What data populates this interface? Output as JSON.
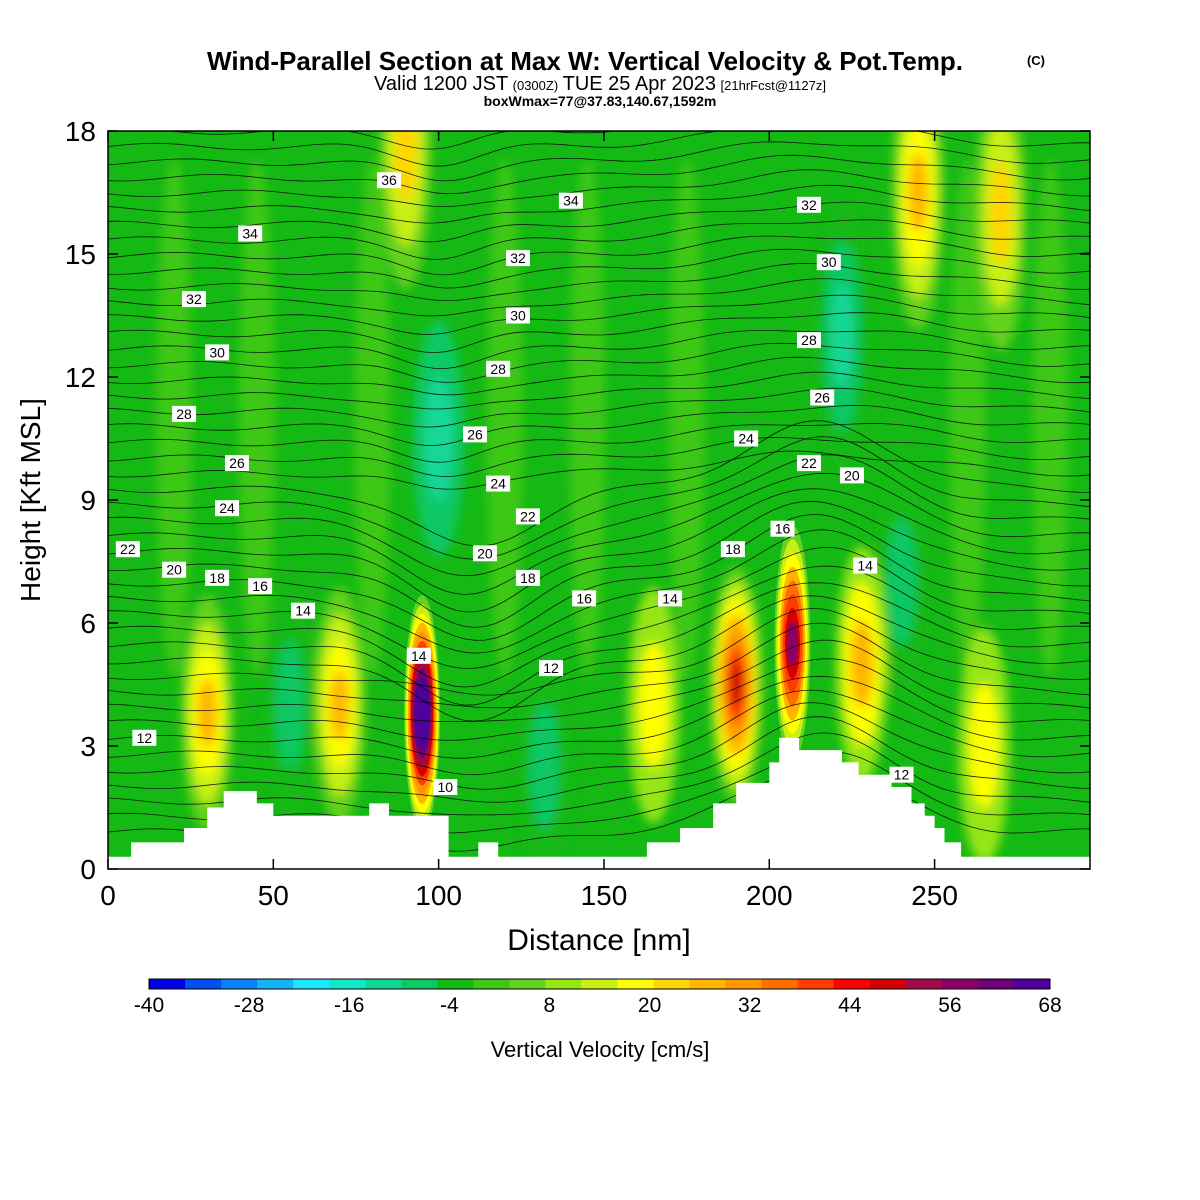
{
  "header": {
    "title": "Wind-Parallel Section at Max W: Vertical Velocity & Pot.Temp.",
    "title_mark": "(C)",
    "subtitle_a": "Valid 1200 JST",
    "subtitle_b": "(0300Z)",
    "subtitle_c": "TUE 25 Apr 2023",
    "subtitle_d": "[21hrFcst@1127z]",
    "subtitle_line3": "boxWmax=77@37.83,140.67,1592m"
  },
  "chart_data": {
    "type": "heatmap",
    "xlabel": "Distance [nm]",
    "ylabel": "Height [Kft MSL]",
    "xlim": [
      0,
      297
    ],
    "ylim": [
      0,
      18
    ],
    "x_ticks": [
      0,
      50,
      100,
      150,
      200,
      250
    ],
    "y_ticks": [
      0,
      3,
      6,
      9,
      12,
      15,
      18
    ],
    "colorbar": {
      "label": "Vertical Velocity [cm/s]",
      "min": -40,
      "max": 68,
      "step": 4,
      "tick_labels": [
        "-40",
        "-28",
        "-16",
        "-4",
        "8",
        "20",
        "32",
        "44",
        "56",
        "68"
      ],
      "colors": [
        "#0000e6",
        "#0050f0",
        "#0a82f5",
        "#18b4f8",
        "#1ee6ff",
        "#14e6c8",
        "#14d796",
        "#0fc864",
        "#14b914",
        "#3cc814",
        "#64d21e",
        "#96e614",
        "#c8f014",
        "#ffff00",
        "#ffd700",
        "#ffb400",
        "#ff9600",
        "#ff6e00",
        "#ff3c00",
        "#ff0000",
        "#d20000",
        "#a00a46",
        "#8c0064",
        "#6e0078",
        "#50009b"
      ]
    },
    "updrafts": [
      {
        "x": 95,
        "z": 3.8,
        "peak": 72
      },
      {
        "x": 207,
        "z": 5.5,
        "peak": 48
      },
      {
        "x": 190,
        "z": 4.5,
        "peak": 40
      },
      {
        "x": 70,
        "z": 4.0,
        "peak": 22
      },
      {
        "x": 30,
        "z": 3.8,
        "peak": 22
      },
      {
        "x": 165,
        "z": 4.0,
        "peak": 12
      },
      {
        "x": 228,
        "z": 5.0,
        "peak": 20
      },
      {
        "x": 265,
        "z": 3.0,
        "peak": 12
      },
      {
        "x": 90,
        "z": 17.5,
        "peak": 18
      },
      {
        "x": 245,
        "z": 16.5,
        "peak": 22
      },
      {
        "x": 270,
        "z": 16.0,
        "peak": 16
      }
    ],
    "downdrafts": [
      {
        "x": 55,
        "z": 4.0,
        "peak": -12
      },
      {
        "x": 100,
        "z": 10.5,
        "peak": -14
      },
      {
        "x": 132,
        "z": 2.5,
        "peak": -10
      },
      {
        "x": 222,
        "z": 13.0,
        "peak": -16
      },
      {
        "x": 240,
        "z": 7.0,
        "peak": -12
      }
    ],
    "terrain": [
      [
        0,
        0.3
      ],
      [
        7,
        0.3
      ],
      [
        7,
        0.65
      ],
      [
        23,
        0.65
      ],
      [
        23,
        1.0
      ],
      [
        30,
        1.0
      ],
      [
        30,
        1.5
      ],
      [
        35,
        1.5
      ],
      [
        35,
        1.9
      ],
      [
        45,
        1.9
      ],
      [
        45,
        1.6
      ],
      [
        50,
        1.6
      ],
      [
        50,
        1.3
      ],
      [
        79,
        1.3
      ],
      [
        79,
        1.6
      ],
      [
        85,
        1.6
      ],
      [
        85,
        1.3
      ],
      [
        103,
        1.3
      ],
      [
        103,
        0.3
      ],
      [
        112,
        0.3
      ],
      [
        112,
        0.65
      ],
      [
        118,
        0.65
      ],
      [
        118,
        0.3
      ],
      [
        163,
        0.3
      ],
      [
        163,
        0.65
      ],
      [
        173,
        0.65
      ],
      [
        173,
        1.0
      ],
      [
        183,
        1.0
      ],
      [
        183,
        1.6
      ],
      [
        190,
        1.6
      ],
      [
        190,
        2.1
      ],
      [
        200,
        2.1
      ],
      [
        200,
        2.6
      ],
      [
        203,
        2.6
      ],
      [
        203,
        3.2
      ],
      [
        209,
        3.2
      ],
      [
        209,
        2.9
      ],
      [
        222,
        2.9
      ],
      [
        222,
        2.6
      ],
      [
        227,
        2.6
      ],
      [
        227,
        2.3
      ],
      [
        237,
        2.3
      ],
      [
        237,
        2.0
      ],
      [
        243,
        2.0
      ],
      [
        243,
        1.6
      ],
      [
        247,
        1.6
      ],
      [
        247,
        1.3
      ],
      [
        250,
        1.3
      ],
      [
        250,
        1.0
      ],
      [
        253,
        1.0
      ],
      [
        253,
        0.65
      ],
      [
        258,
        0.65
      ],
      [
        258,
        0.3
      ],
      [
        297,
        0.3
      ]
    ],
    "theta_labels": [
      {
        "text": "36",
        "x": 85,
        "z": 16.8
      },
      {
        "text": "34",
        "x": 140,
        "z": 16.3
      },
      {
        "text": "34",
        "x": 43,
        "z": 15.5
      },
      {
        "text": "32",
        "x": 124,
        "z": 14.9
      },
      {
        "text": "32",
        "x": 212,
        "z": 16.2
      },
      {
        "text": "30",
        "x": 218,
        "z": 14.8
      },
      {
        "text": "32",
        "x": 26,
        "z": 13.9
      },
      {
        "text": "30",
        "x": 124,
        "z": 13.5
      },
      {
        "text": "30",
        "x": 33,
        "z": 12.6
      },
      {
        "text": "28",
        "x": 212,
        "z": 12.9
      },
      {
        "text": "28",
        "x": 118,
        "z": 12.2
      },
      {
        "text": "26",
        "x": 216,
        "z": 11.5
      },
      {
        "text": "28",
        "x": 23,
        "z": 11.1
      },
      {
        "text": "26",
        "x": 111,
        "z": 10.6
      },
      {
        "text": "24",
        "x": 193,
        "z": 10.5
      },
      {
        "text": "26",
        "x": 39,
        "z": 9.9
      },
      {
        "text": "22",
        "x": 212,
        "z": 9.9
      },
      {
        "text": "20",
        "x": 225,
        "z": 9.6
      },
      {
        "text": "24",
        "x": 118,
        "z": 9.4
      },
      {
        "text": "24",
        "x": 36,
        "z": 8.8
      },
      {
        "text": "22",
        "x": 127,
        "z": 8.6
      },
      {
        "text": "16",
        "x": 204,
        "z": 8.3
      },
      {
        "text": "22",
        "x": 6,
        "z": 7.8
      },
      {
        "text": "18",
        "x": 189,
        "z": 7.8
      },
      {
        "text": "20",
        "x": 114,
        "z": 7.7
      },
      {
        "text": "14",
        "x": 229,
        "z": 7.4
      },
      {
        "text": "20",
        "x": 20,
        "z": 7.3
      },
      {
        "text": "18",
        "x": 33,
        "z": 7.1
      },
      {
        "text": "18",
        "x": 127,
        "z": 7.1
      },
      {
        "text": "16",
        "x": 46,
        "z": 6.9
      },
      {
        "text": "16",
        "x": 144,
        "z": 6.6
      },
      {
        "text": "14",
        "x": 170,
        "z": 6.6
      },
      {
        "text": "14",
        "x": 59,
        "z": 6.3
      },
      {
        "text": "14",
        "x": 94,
        "z": 5.2
      },
      {
        "text": "12",
        "x": 134,
        "z": 4.9
      },
      {
        "text": "12",
        "x": 11,
        "z": 3.2
      },
      {
        "text": "10",
        "x": 102,
        "z": 2.0
      },
      {
        "text": "12",
        "x": 240,
        "z": 2.3
      }
    ]
  }
}
